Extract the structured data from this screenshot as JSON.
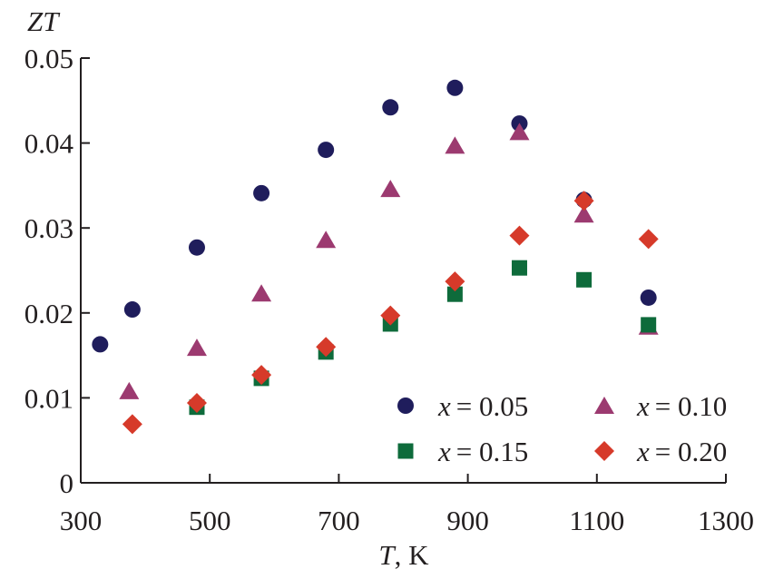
{
  "chart_data": {
    "type": "scatter",
    "ylabel": "ZT",
    "xlabel_var": "T",
    "xlabel_unit": ", K",
    "xlim": [
      300,
      1300
    ],
    "ylim": [
      0,
      0.05
    ],
    "xticks": [
      300,
      500,
      700,
      900,
      1100,
      1300
    ],
    "yticks": [
      0,
      0.01,
      0.02,
      0.03,
      0.04,
      0.05
    ],
    "ytick_labels": [
      "0",
      "0.01",
      "0.02",
      "0.03",
      "0.04",
      "0.05"
    ],
    "grid": false,
    "legend_position": "bottom-right",
    "series": [
      {
        "name": "x = 0.05",
        "var": "x",
        "value": "= 0.05",
        "marker": "circle",
        "color": "#1f1d5c",
        "x": [
          330,
          380,
          480,
          580,
          680,
          780,
          880,
          980,
          1080,
          1180
        ],
        "y": [
          0.0163,
          0.0204,
          0.0277,
          0.0341,
          0.0392,
          0.0442,
          0.0465,
          0.0423,
          0.0333,
          0.0218
        ]
      },
      {
        "name": "x = 0.10",
        "var": "x",
        "value": "= 0.10",
        "marker": "triangle",
        "color": "#9c3a70",
        "x": [
          375,
          480,
          580,
          680,
          780,
          880,
          980,
          1080,
          1180
        ],
        "y": [
          0.0108,
          0.0159,
          0.0223,
          0.0286,
          0.0346,
          0.0397,
          0.0413,
          0.0316,
          0.0184
        ]
      },
      {
        "name": "x = 0.15",
        "var": "x",
        "value": "= 0.15",
        "marker": "square",
        "color": "#0e6b3b",
        "x": [
          480,
          580,
          680,
          780,
          880,
          980,
          1080,
          1180
        ],
        "y": [
          0.0089,
          0.0123,
          0.0154,
          0.0187,
          0.0222,
          0.0253,
          0.0239,
          0.0186
        ]
      },
      {
        "name": "x = 0.20",
        "var": "x",
        "value": "= 0.20",
        "marker": "diamond",
        "color": "#d63a2a",
        "x": [
          380,
          480,
          580,
          680,
          780,
          880,
          980,
          1080,
          1180
        ],
        "y": [
          0.0069,
          0.0094,
          0.0127,
          0.016,
          0.0197,
          0.0237,
          0.0291,
          0.0332,
          0.0287
        ]
      }
    ]
  }
}
